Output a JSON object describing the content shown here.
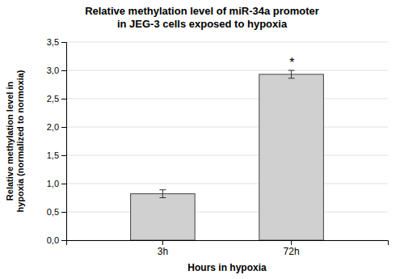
{
  "chart_data": {
    "type": "bar",
    "title": "Relative methylation level of miR-34a promoter\nin JEG-3 cells exposed to hypoxia",
    "x_label": "Hours in hypoxia",
    "y_label": "Relative methylation level in\nhypoxia (normalized to normoxia)",
    "categories": [
      "3h",
      "72h"
    ],
    "values": [
      0.82,
      2.93
    ],
    "errors": [
      0.07,
      0.07
    ],
    "color": "#d0d0d0",
    "ylim": [
      0.0,
      3.5
    ],
    "yticks": [
      {
        "value": 0.0,
        "label": "0,0"
      },
      {
        "value": 0.5,
        "label": "0,5"
      },
      {
        "value": 1.0,
        "label": "1,0"
      },
      {
        "value": 1.5,
        "label": "1,5"
      },
      {
        "value": 2.0,
        "label": "2,0"
      },
      {
        "value": 2.5,
        "label": "2,5"
      },
      {
        "value": 3.0,
        "label": "3,0"
      },
      {
        "value": 3.5,
        "label": "3,5"
      }
    ],
    "grid": true,
    "annotations": [
      {
        "text": "*",
        "category": "72h"
      }
    ]
  }
}
